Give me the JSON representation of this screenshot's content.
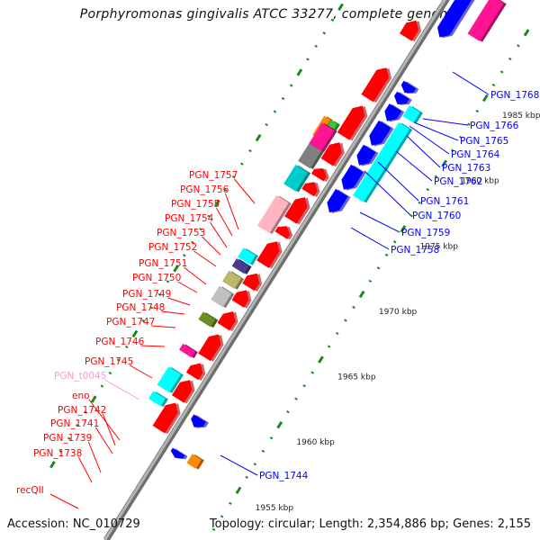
{
  "header": {
    "title": "Porphyromonas gingivalis ATCC 33277, complete genome"
  },
  "footer": {
    "accession": "Accession: NC_010729",
    "summary": "Topology: circular; Length: 2,354,886 bp; Genes: 2,155"
  },
  "colors": {
    "backbone": "#8c8c8c",
    "forward_cds": "#ff0000",
    "reverse_cds": "#0000ff",
    "tick": "#1a8a1a",
    "label_forward": "#ff0000",
    "label_reverse": "#0000ff",
    "label_trna": "#ff99cc"
  },
  "ruler": {
    "unit": "kbp",
    "ticks": [
      {
        "label": "1955 kbp",
        "kbp": 1955
      },
      {
        "label": "1960 kbp",
        "kbp": 1960
      },
      {
        "label": "1965 kbp",
        "kbp": 1965
      },
      {
        "label": "1970 kbp",
        "kbp": 1970
      },
      {
        "label": "1975 kbp",
        "kbp": 1975
      },
      {
        "label": "1980 kbp",
        "kbp": 1980
      },
      {
        "label": "1985 kbp",
        "kbp": 1985
      }
    ]
  },
  "features": {
    "forward_labels": [
      {
        "name": "PGN_1757",
        "color": "#ff0000"
      },
      {
        "name": "PGN_1756",
        "color": "#ff0000"
      },
      {
        "name": "PGN_1755",
        "color": "#ff0000"
      },
      {
        "name": "PGN_1754",
        "color": "#ff0000"
      },
      {
        "name": "PGN_1753",
        "color": "#ff0000"
      },
      {
        "name": "PGN_1752",
        "color": "#ff0000"
      },
      {
        "name": "PGN_1751",
        "color": "#ff0000"
      },
      {
        "name": "PGN_1750",
        "color": "#ff0000"
      },
      {
        "name": "PGN_1749",
        "color": "#ff0000"
      },
      {
        "name": "PGN_1748",
        "color": "#ff0000"
      },
      {
        "name": "PGN_1747",
        "color": "#ff0000"
      },
      {
        "name": "PGN_1746",
        "color": "#ff0000"
      },
      {
        "name": "PGN_1745",
        "color": "#ff0000"
      },
      {
        "name": "PGN_t0045",
        "color": "#ff99cc"
      },
      {
        "name": "eno",
        "color": "#ff0000"
      },
      {
        "name": "PGN_1742",
        "color": "#ff0000"
      },
      {
        "name": "PGN_1741",
        "color": "#ff0000"
      },
      {
        "name": "PGN_1739",
        "color": "#ff0000"
      },
      {
        "name": "PGN_1738",
        "color": "#ff0000"
      },
      {
        "name": "recQII",
        "color": "#ff0000"
      }
    ],
    "reverse_labels": [
      {
        "name": "PGN_1768",
        "color": "#0000ff"
      },
      {
        "name": "PGN_1766",
        "color": "#0000ff"
      },
      {
        "name": "PGN_1765",
        "color": "#0000ff"
      },
      {
        "name": "PGN_1764",
        "color": "#0000ff"
      },
      {
        "name": "PGN_1763",
        "color": "#0000ff"
      },
      {
        "name": "PGN_1762",
        "color": "#0000ff"
      },
      {
        "name": "PGN_1761",
        "color": "#0000ff"
      },
      {
        "name": "PGN_1760",
        "color": "#0000ff"
      },
      {
        "name": "PGN_1759",
        "color": "#0000ff"
      },
      {
        "name": "PGN_1758",
        "color": "#0000ff"
      },
      {
        "name": "PGN_1744",
        "color": "#0000ff"
      }
    ],
    "cog_blocks_outer": [
      {
        "gene": "PGN_1757",
        "color": "#ff8c00"
      },
      {
        "gene": "PGN_1756",
        "color": "#33cc33"
      },
      {
        "gene": "PGN_1755",
        "color": "#00ffff"
      },
      {
        "gene": "PGN_1753",
        "color": "#00ffff"
      },
      {
        "gene": "PGN_1750",
        "color": "#ff1493"
      },
      {
        "gene": "PGN_1749",
        "color": "#6b8e23"
      },
      {
        "gene": "PGN_1748",
        "color": "#c0c0c0"
      },
      {
        "gene": "PGN_1747",
        "color": "#bdb76b"
      },
      {
        "gene": "PGN_1746",
        "color": "#483d8b"
      },
      {
        "gene": "PGN_1745",
        "color": "#00ffff"
      },
      {
        "gene": "PGN_t0045",
        "color": "#ffb6c1"
      },
      {
        "gene": "eno",
        "color": "#00cccc"
      },
      {
        "gene": "PGN_1741",
        "color": "#808080"
      },
      {
        "gene": "PGN_1738",
        "color": "#6a5acd"
      },
      {
        "gene": "recQII",
        "color": "#ff1493"
      }
    ],
    "cog_blocks_reverse": [
      {
        "gene": "PGN_1766",
        "color": "#00ffff"
      },
      {
        "gene": "PGN_1762",
        "color": "#00ffff"
      },
      {
        "gene": "PGN_1744",
        "color": "#ff8c00"
      }
    ]
  }
}
